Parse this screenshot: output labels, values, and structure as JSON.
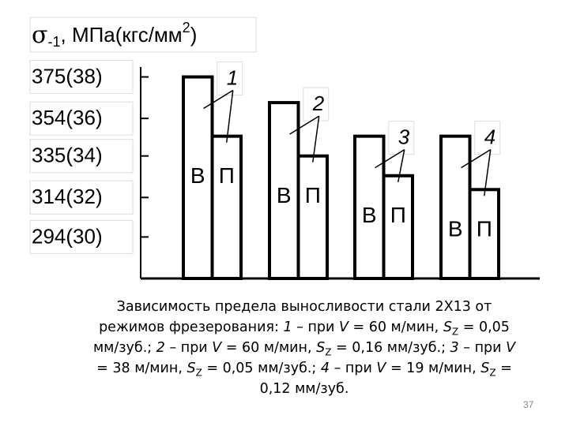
{
  "chart_data": {
    "type": "bar",
    "y_label_parts": [
      "σ",
      "-1",
      ", МПа(кгс/мм",
      "2",
      ")"
    ],
    "categories": [
      "1",
      "2",
      "3",
      "4"
    ],
    "series": [
      {
        "name": "В",
        "color": "#ffffff",
        "values": [
          375,
          362,
          345,
          345
        ]
      },
      {
        "name": "П",
        "color": "#ffffff",
        "values": [
          345,
          335,
          325,
          318
        ]
      }
    ],
    "ylim": [
      273,
      380
    ],
    "yticks": [
      {
        "value": 375,
        "label": "375(38)"
      },
      {
        "value": 354,
        "label": "354(36)"
      },
      {
        "value": 335,
        "label": "335(34)"
      },
      {
        "value": 314,
        "label": "314(32)"
      },
      {
        "value": 294,
        "label": "294(30)"
      }
    ],
    "caption": [
      {
        "text": "Зависимость предела выносливости стали 2Х13 от режимов фрезерования: "
      },
      {
        "text": "1",
        "italic": true
      },
      {
        "text": " – при "
      },
      {
        "text": "V",
        "italic": true
      },
      {
        "text": " = 60 м/мин, "
      },
      {
        "text": "S",
        "italic": true
      },
      {
        "text": "Z",
        "sub": true
      },
      {
        "text": " = 0,05 мм/зуб.; "
      },
      {
        "text": "2",
        "italic": true
      },
      {
        "text": " – при "
      },
      {
        "text": "V",
        "italic": true
      },
      {
        "text": " = 60 м/мин, "
      },
      {
        "text": "S",
        "italic": true
      },
      {
        "text": "Z",
        "sub": true
      },
      {
        "text": " = 0,16 мм/зуб.; "
      },
      {
        "text": "3",
        "italic": true
      },
      {
        "text": " – при "
      },
      {
        "text": "V",
        "italic": true
      },
      {
        "text": " = 38 м/мин, "
      },
      {
        "text": "S",
        "italic": true
      },
      {
        "text": "Z",
        "sub": true
      },
      {
        "text": " = 0,05 мм/зуб.; "
      },
      {
        "text": "4",
        "italic": true
      },
      {
        "text": " – при "
      },
      {
        "text": "V",
        "italic": true
      },
      {
        "text": " = 19 м/мин, "
      },
      {
        "text": "S",
        "italic": true
      },
      {
        "text": "Z",
        "sub": true
      },
      {
        "text": " = 0,12 мм/зуб."
      }
    ],
    "page_number": "37"
  }
}
